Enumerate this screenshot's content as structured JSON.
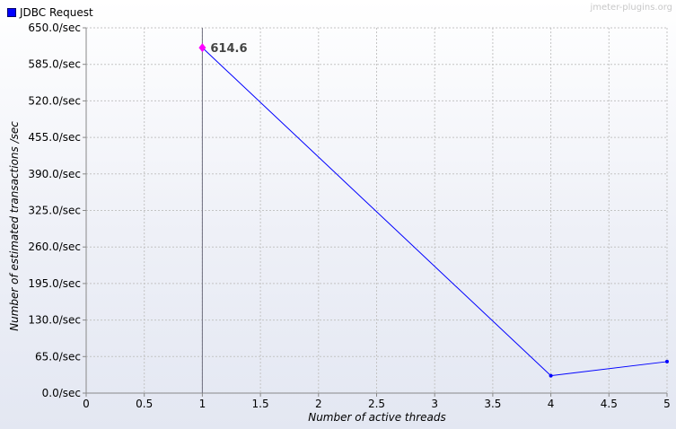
{
  "chart_data": {
    "type": "line",
    "title": "",
    "xlabel": "Number of active threads",
    "ylabel": "Number of estimated transactions /sec",
    "xlim": [
      0,
      5
    ],
    "ylim": [
      0,
      650
    ],
    "x_ticks": [
      "0",
      "0.5",
      "1",
      "1.5",
      "2",
      "2.5",
      "3",
      "3.5",
      "4",
      "4.5",
      "5"
    ],
    "y_ticks": [
      "0.0/sec",
      "65.0/sec",
      "130.0/sec",
      "195.0/sec",
      "260.0/sec",
      "325.0/sec",
      "390.0/sec",
      "455.0/sec",
      "520.0/sec",
      "585.0/sec",
      "650.0/sec"
    ],
    "grid": true,
    "legend_position": "top-left",
    "series": [
      {
        "name": "JDBC Request",
        "color": "#0000ff",
        "x": [
          1,
          4,
          5
        ],
        "y": [
          614.6,
          31,
          56
        ]
      }
    ],
    "annotations": [
      {
        "x": 1,
        "y": 614.6,
        "text": "614.6",
        "marker_color": "#ff00ff"
      }
    ],
    "reference_line_x": 1
  },
  "legend": {
    "label": "JDBC Request"
  },
  "watermark": "jmeter-plugins.org"
}
